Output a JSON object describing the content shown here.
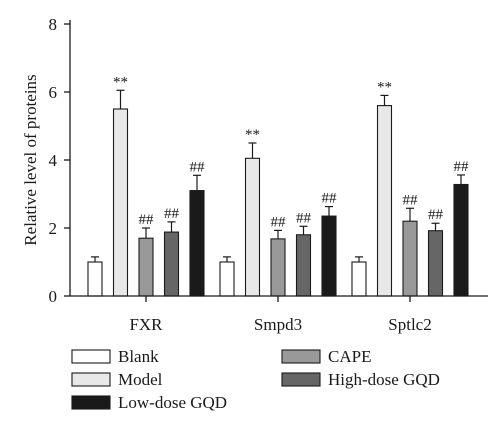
{
  "chart_data": {
    "type": "bar",
    "title": "",
    "xlabel": "",
    "ylabel": "Relative level of proteins",
    "ylim": [
      0,
      8
    ],
    "yticks": [
      0,
      2,
      4,
      6,
      8
    ],
    "grid": false,
    "legend_position": "bottom",
    "categories": [
      "FXR",
      "Smpd3",
      "Sptlc2"
    ],
    "series": [
      {
        "name": "Blank",
        "color": "#ffffff",
        "values": [
          1.0,
          1.0,
          1.0
        ],
        "errors": [
          0.15,
          0.15,
          0.15
        ],
        "annotations": [
          "",
          "",
          ""
        ]
      },
      {
        "name": "Model",
        "color": "#e8e8e8",
        "values": [
          5.5,
          4.05,
          5.6
        ],
        "errors": [
          0.55,
          0.45,
          0.3
        ],
        "annotations": [
          "**",
          "**",
          "**"
        ]
      },
      {
        "name": "CAPE",
        "color": "#999999",
        "values": [
          1.7,
          1.68,
          2.2
        ],
        "errors": [
          0.3,
          0.25,
          0.38
        ],
        "annotations": [
          "##",
          "##",
          "##"
        ]
      },
      {
        "name": "High-dose GQD",
        "color": "#666666",
        "values": [
          1.88,
          1.8,
          1.92
        ],
        "errors": [
          0.3,
          0.25,
          0.22
        ],
        "annotations": [
          "##",
          "##",
          "##"
        ]
      },
      {
        "name": "Low-dose GQD",
        "color": "#1a1a1a",
        "values": [
          3.1,
          2.35,
          3.28
        ],
        "errors": [
          0.45,
          0.28,
          0.28
        ],
        "annotations": [
          "##",
          "##",
          "##"
        ]
      }
    ],
    "legend_order": [
      0,
      2,
      1,
      3,
      4
    ]
  }
}
